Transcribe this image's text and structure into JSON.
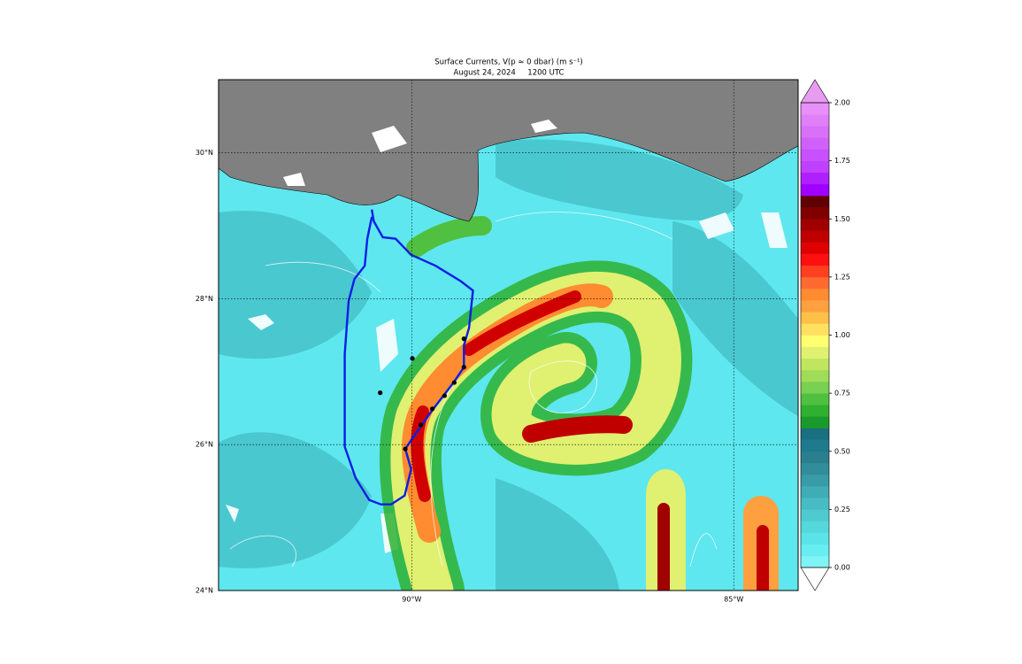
{
  "chart_data": {
    "type": "map",
    "title": "Surface Currents, V(p ≈ 0 dbar) (m s⁻¹)",
    "subtitle": "August 24, 2024     1200 UTC",
    "xlim": [
      -93,
      -84
    ],
    "ylim": [
      24,
      31
    ],
    "xticks": [
      {
        "value": -90,
        "label": "90°W"
      },
      {
        "value": -85,
        "label": "85°W"
      }
    ],
    "yticks": [
      {
        "value": 24,
        "label": "24°N"
      },
      {
        "value": 26,
        "label": "26°N"
      },
      {
        "value": 28,
        "label": "28°N"
      },
      {
        "value": 30,
        "label": "30°N"
      }
    ],
    "grid": true,
    "track": {
      "color": "#0a1ee6",
      "lon": [
        -90.62,
        -90.59,
        -90.45,
        -90.25,
        -90.01,
        -89.63,
        -89.24,
        -89.05,
        -89.11,
        -89.19,
        -89.19,
        -89.35,
        -89.7,
        -90.01,
        -90.1,
        -90.01,
        -90.11,
        -90.32,
        -90.48,
        -90.66,
        -90.87,
        -91.04,
        -91.04,
        -90.98,
        -90.89,
        -90.73,
        -90.69,
        -90.62
      ],
      "lat": [
        29.22,
        29.06,
        28.84,
        28.82,
        28.6,
        28.45,
        28.24,
        28.11,
        27.6,
        27.36,
        27.06,
        26.85,
        26.45,
        26.06,
        25.94,
        25.66,
        25.3,
        25.18,
        25.18,
        25.24,
        25.54,
        25.97,
        27.24,
        27.97,
        28.27,
        28.45,
        28.82,
        29.12
      ]
    },
    "stations": {
      "color": "#000000",
      "lon": [
        -90.49,
        -89.99,
        -90.1,
        -89.19,
        -89.19,
        -89.34,
        -89.49,
        -89.68,
        -89.86
      ],
      "lat": [
        26.71,
        27.18,
        25.94,
        27.45,
        27.06,
        26.85,
        26.67,
        26.49,
        26.27
      ]
    },
    "colorbar": {
      "lim": [
        0,
        2
      ],
      "ticks": [
        {
          "value": 0,
          "label": "0.00"
        },
        {
          "value": 0.25,
          "label": "0.25"
        },
        {
          "value": 0.5,
          "label": "0.50"
        },
        {
          "value": 0.75,
          "label": "0.75"
        },
        {
          "value": 1,
          "label": "1.00"
        },
        {
          "value": 1.25,
          "label": "1.25"
        },
        {
          "value": 1.5,
          "label": "1.50"
        },
        {
          "value": 1.75,
          "label": "1.75"
        },
        {
          "value": 2,
          "label": "2.00"
        }
      ],
      "colors": [
        "#7ff3f5",
        "#66eef0",
        "#5ae4e8",
        "#55d8dc",
        "#4fcbd0",
        "#48bcc4",
        "#40acb6",
        "#389ca8",
        "#318d9b",
        "#2a7f8f",
        "#1e7a8c",
        "#1a6f80",
        "#1a9a2a",
        "#30b030",
        "#50c040",
        "#7ad050",
        "#a0dc58",
        "#c0e660",
        "#e0f070",
        "#ffff70",
        "#ffe060",
        "#ffc048",
        "#ffa040",
        "#ff8c30",
        "#ff6a30",
        "#ff4020",
        "#ff1010",
        "#e00000",
        "#c00000",
        "#a00000",
        "#800000",
        "#600000",
        "#a000ff",
        "#b020ff",
        "#c040ff",
        "#c850ff",
        "#d060f8",
        "#d870f8",
        "#e080f8",
        "#e890f8"
      ],
      "under": "#ffffff",
      "over": "#e89cf0"
    }
  }
}
